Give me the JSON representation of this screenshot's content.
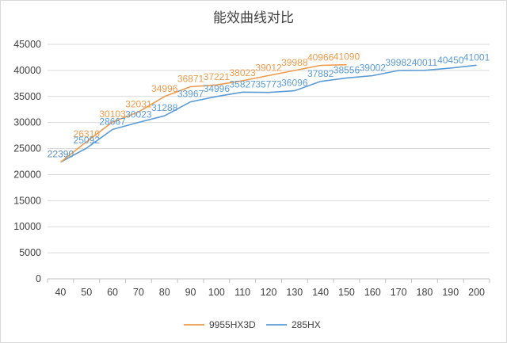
{
  "chart_data": {
    "type": "line",
    "title": "能效曲线对比",
    "x": [
      40,
      50,
      60,
      70,
      80,
      90,
      100,
      110,
      120,
      130,
      140,
      150,
      160,
      170,
      180,
      190,
      200
    ],
    "ylim": [
      0,
      45000
    ],
    "yticks": [
      0,
      5000,
      10000,
      15000,
      20000,
      25000,
      30000,
      35000,
      40000,
      45000
    ],
    "grid": true,
    "legend_position": "bottom",
    "series": [
      {
        "name": "9955HX3D",
        "color": "#ED9B4B",
        "x": [
          40,
          50,
          60,
          70,
          80,
          90,
          100,
          110,
          120,
          130,
          140,
          150
        ],
        "values": [
          22390,
          26310,
          30103,
          32031,
          34996,
          36871,
          37221,
          38023,
          39012,
          39988,
          40966,
          41090
        ]
      },
      {
        "name": "285HX",
        "color": "#5B9BD5",
        "x": [
          40,
          50,
          60,
          70,
          80,
          90,
          100,
          110,
          120,
          130,
          140,
          150,
          160,
          170,
          180,
          190,
          200
        ],
        "values": [
          22390,
          25092,
          28667,
          30023,
          31288,
          33967,
          34996,
          35827,
          35773,
          36096,
          37882,
          38556,
          39002,
          39982,
          40011,
          40450,
          41001
        ]
      }
    ]
  }
}
